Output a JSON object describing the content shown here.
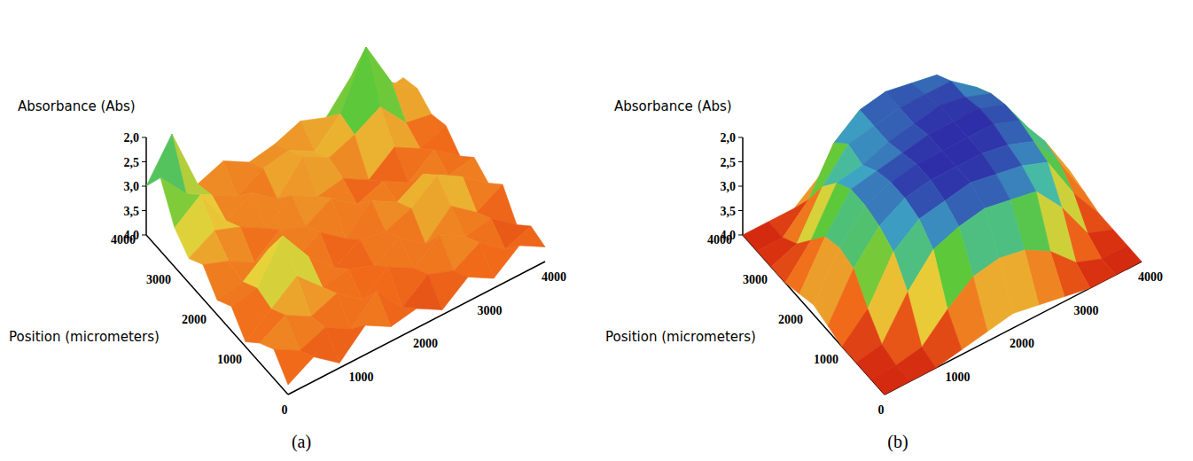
{
  "chart_data": [
    {
      "type": "surface",
      "title": "(a)",
      "xlabel": "Position (micrometers)",
      "zlabel": "Absorbance (Abs)",
      "x": [
        0,
        400,
        800,
        1200,
        1600,
        2000,
        2400,
        2800,
        3200,
        3600,
        4000
      ],
      "y": [
        0,
        400,
        800,
        1200,
        1600,
        2000,
        2400,
        2800,
        3200,
        3600,
        4000
      ],
      "z": [
        [
          3.8,
          3.5,
          3.9,
          3.4,
          3.7,
          3.6,
          3.9,
          3.5,
          3.8,
          3.4,
          3.7
        ],
        [
          3.4,
          3.7,
          3.5,
          3.8,
          3.3,
          3.9,
          3.5,
          3.7,
          3.4,
          3.8,
          3.6
        ],
        [
          3.6,
          3.3,
          3.6,
          3.4,
          3.8,
          3.4,
          3.7,
          3.3,
          3.6,
          3.5,
          3.9
        ],
        [
          3.9,
          3.5,
          3.1,
          3.6,
          3.5,
          3.7,
          3.4,
          3.8,
          3.3,
          3.7,
          3.4
        ],
        [
          3.5,
          3.4,
          2.6,
          3.3,
          3.8,
          3.5,
          3.6,
          3.4,
          3.0,
          3.3,
          3.7
        ],
        [
          3.7,
          3.6,
          3.2,
          3.7,
          3.4,
          3.8,
          3.3,
          3.6,
          3.3,
          3.6,
          3.5
        ],
        [
          3.3,
          3.5,
          3.8,
          3.4,
          3.6,
          3.3,
          3.7,
          3.5,
          3.8,
          3.4,
          3.8
        ],
        [
          3.5,
          3.2,
          3.4,
          3.7,
          3.3,
          3.6,
          3.5,
          3.8,
          3.4,
          3.7,
          3.5
        ],
        [
          3.2,
          2.8,
          3.6,
          3.3,
          3.7,
          3.1,
          3.4,
          3.2,
          2.9,
          3.5,
          3.6
        ],
        [
          2.5,
          3.1,
          3.4,
          3.7,
          3.4,
          3.3,
          3.6,
          3.1,
          2.0,
          3.0,
          3.4
        ],
        [
          3.0,
          2.2,
          3.5,
          3.3,
          3.6,
          3.5,
          3.3,
          3.5,
          2.9,
          3.6,
          3.5
        ]
      ],
      "xlim": [
        0,
        4000
      ],
      "ylim": [
        0,
        4000
      ],
      "zlim": [
        4,
        2
      ],
      "xticks": [
        0,
        1000,
        2000,
        3000,
        4000
      ],
      "yticks": [
        1000,
        2000,
        3000,
        4000
      ],
      "zticks": [
        {
          "value": 2,
          "label": "2,0"
        },
        {
          "value": 2.5,
          "label": "2,5"
        },
        {
          "value": 3,
          "label": "3,0"
        },
        {
          "value": 3.5,
          "label": "3,5"
        },
        {
          "value": 4,
          "label": "4,0"
        }
      ]
    },
    {
      "type": "surface",
      "title": "(b)",
      "xlabel": "Position (micrometers)",
      "zlabel": "Absorbance (Abs)",
      "x": [
        0,
        400,
        800,
        1200,
        1600,
        2000,
        2400,
        2800,
        3200,
        3600,
        4000
      ],
      "y": [
        0,
        400,
        800,
        1200,
        1600,
        2000,
        2400,
        2800,
        3200,
        3600,
        4000
      ],
      "z": [
        [
          4.0,
          4.0,
          4.0,
          3.9,
          3.8,
          3.7,
          3.8,
          3.9,
          4.0,
          4.0,
          4.0
        ],
        [
          4.0,
          4.0,
          3.9,
          3.4,
          3.0,
          2.9,
          3.0,
          3.3,
          3.8,
          4.0,
          4.0
        ],
        [
          4.0,
          3.9,
          3.1,
          2.5,
          2.3,
          2.2,
          2.3,
          2.4,
          3.0,
          3.8,
          4.0
        ],
        [
          4.0,
          3.5,
          2.6,
          2.2,
          2.1,
          2.0,
          2.1,
          2.2,
          2.4,
          3.3,
          4.0
        ],
        [
          3.9,
          3.0,
          2.4,
          2.1,
          2.0,
          2.0,
          2.0,
          2.1,
          2.3,
          3.0,
          3.9
        ],
        [
          3.8,
          2.9,
          2.3,
          2.1,
          2.0,
          2.0,
          2.0,
          2.0,
          2.2,
          2.9,
          3.8
        ],
        [
          3.9,
          3.0,
          2.3,
          2.2,
          2.1,
          2.0,
          2.0,
          2.0,
          2.2,
          3.0,
          3.9
        ],
        [
          4.0,
          3.4,
          2.5,
          2.4,
          2.2,
          2.1,
          2.0,
          2.1,
          2.3,
          3.2,
          4.0
        ],
        [
          4.0,
          3.8,
          2.9,
          2.3,
          2.2,
          2.1,
          2.1,
          2.1,
          2.5,
          3.5,
          4.0
        ],
        [
          4.0,
          4.0,
          3.5,
          2.6,
          2.2,
          2.1,
          2.2,
          2.3,
          3.0,
          3.9,
          4.0
        ],
        [
          4.0,
          4.0,
          4.0,
          3.6,
          3.0,
          2.7,
          2.9,
          3.2,
          3.8,
          4.0,
          4.0
        ]
      ],
      "xlim": [
        0,
        4000
      ],
      "ylim": [
        0,
        4000
      ],
      "zlim": [
        4,
        2
      ],
      "xticks": [
        0,
        1000,
        2000,
        3000,
        4000
      ],
      "yticks": [
        1000,
        2000,
        3000,
        4000
      ],
      "zticks": [
        {
          "value": 2,
          "label": "2,0"
        },
        {
          "value": 2.5,
          "label": "2,5"
        },
        {
          "value": 3,
          "label": "3,0"
        },
        {
          "value": 3.5,
          "label": "3,5"
        },
        {
          "value": 4,
          "label": "4,0"
        }
      ]
    }
  ]
}
